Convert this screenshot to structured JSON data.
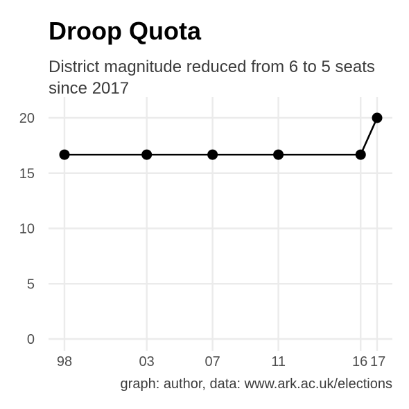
{
  "chart_data": {
    "type": "line",
    "title": "Droop Quota",
    "subtitle": "District magnitude reduced from 6 to 5 seats since 2017",
    "caption": "graph: author, data: www.ark.ac.uk/elections",
    "xlabel": "",
    "ylabel": "",
    "x": [
      1998,
      2003,
      2007,
      2011,
      2016,
      2017
    ],
    "x_tick_labels": [
      "98",
      "03",
      "07",
      "11",
      "16",
      "17"
    ],
    "values": [
      16.67,
      16.67,
      16.67,
      16.67,
      16.67,
      20
    ],
    "y_ticks": [
      0,
      5,
      10,
      15,
      20
    ],
    "y_tick_labels": [
      "0",
      "5",
      "10",
      "15",
      "20"
    ],
    "xlim": [
      1997.5,
      2018
    ],
    "ylim": [
      0,
      21
    ],
    "grid": true,
    "legend": "none",
    "colors": {
      "line": "#000000",
      "point": "#000000",
      "grid": "#ebebeb",
      "tick_label": "#4d4d4d",
      "title": "#000000",
      "subtitle": "#3c3c3c"
    }
  }
}
